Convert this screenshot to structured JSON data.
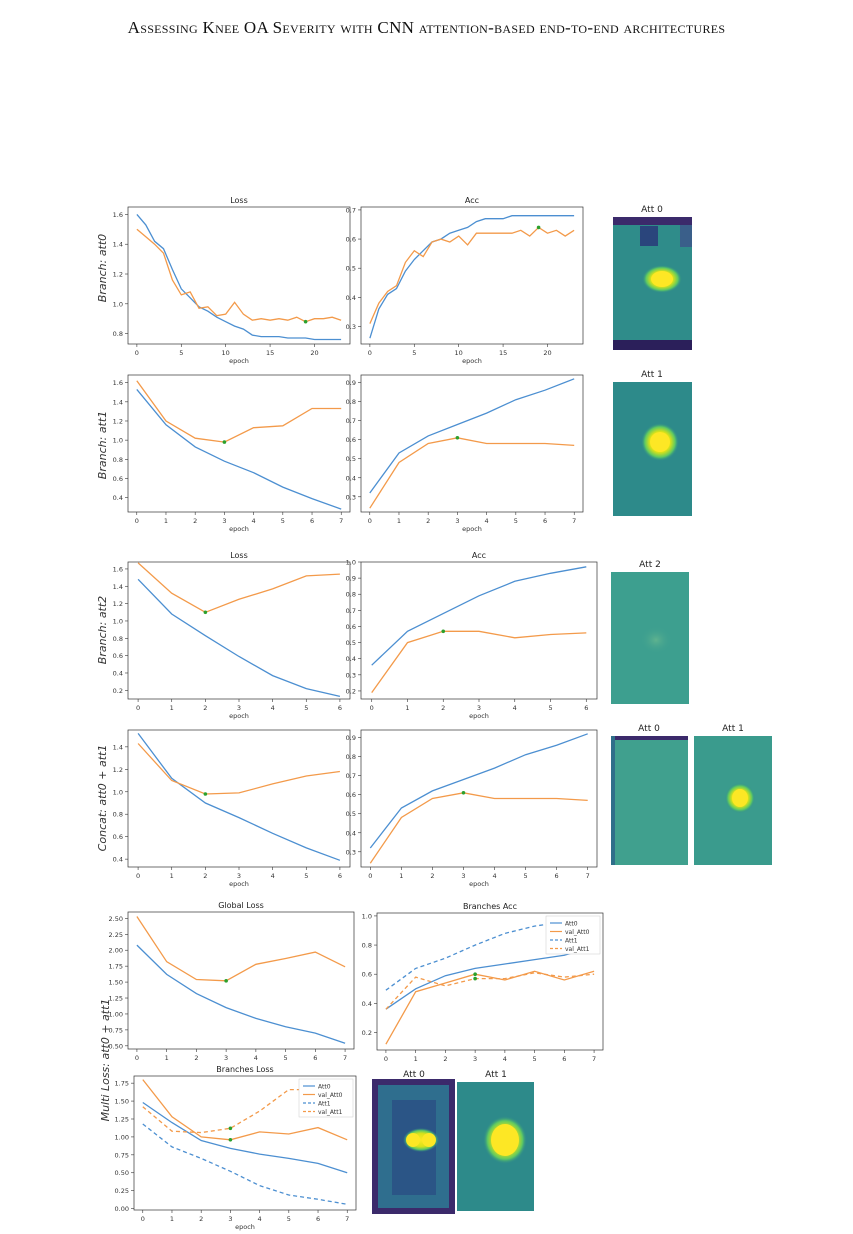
{
  "header": {
    "running_title": "Assessing Knee OA Severity with CNN attention-based end-to-end architectures"
  },
  "figure": {
    "rows": [
      {
        "label": "Branch: att0"
      },
      {
        "label": "Branch: att1"
      },
      {
        "label": "Branch: att2"
      },
      {
        "label": "Concat: att0 + att1"
      },
      {
        "label": "Multi Loss: att0 + att1"
      }
    ],
    "attention_titles": [
      "Att 0",
      "Att 1",
      "Att 2",
      "Att 0",
      "Att 1",
      "Att 0",
      "Att 1"
    ]
  },
  "colors": {
    "train": "#4c8fd1",
    "val": "#f39a4a",
    "best_marker": "#2ca02c",
    "heat_bg": "#2d8a8a",
    "heat_hot": "#fde725",
    "heat_dark": "#3b2a6b"
  },
  "chart_data": [
    {
      "id": "p1",
      "type": "line",
      "title": "Loss",
      "xlabel": "epoch",
      "ylabel": "",
      "xlim": [
        -1,
        24
      ],
      "ylim": [
        0.73,
        1.65
      ],
      "xticks": [
        0,
        5,
        10,
        15,
        20
      ],
      "yticks": [
        0.8,
        1.0,
        1.2,
        1.4,
        1.6
      ],
      "series": [
        {
          "role": "train",
          "x": [
            0,
            1,
            2,
            3,
            4,
            5,
            6,
            7,
            8,
            9,
            10,
            11,
            12,
            13,
            14,
            15,
            16,
            17,
            18,
            19,
            20,
            21,
            22,
            23
          ],
          "values": [
            1.6,
            1.53,
            1.42,
            1.37,
            1.23,
            1.1,
            1.04,
            0.98,
            0.95,
            0.91,
            0.88,
            0.85,
            0.83,
            0.79,
            0.78,
            0.78,
            0.78,
            0.77,
            0.77,
            0.77,
            0.76,
            0.76,
            0.76,
            0.76
          ]
        },
        {
          "role": "val",
          "x": [
            0,
            1,
            2,
            3,
            4,
            5,
            6,
            7,
            8,
            9,
            10,
            11,
            12,
            13,
            14,
            15,
            16,
            17,
            18,
            19,
            20,
            21,
            22,
            23
          ],
          "values": [
            1.5,
            1.45,
            1.4,
            1.34,
            1.16,
            1.06,
            1.08,
            0.97,
            0.98,
            0.92,
            0.93,
            1.01,
            0.93,
            0.89,
            0.9,
            0.89,
            0.9,
            0.89,
            0.91,
            0.88,
            0.9,
            0.9,
            0.91,
            0.89
          ]
        }
      ],
      "marker": {
        "x": 19,
        "y": 0.88
      }
    },
    {
      "id": "p2",
      "type": "line",
      "title": "Acc",
      "xlabel": "epoch",
      "ylabel": "",
      "xlim": [
        -1,
        24
      ],
      "ylim": [
        0.24,
        0.71
      ],
      "xticks": [
        0,
        5,
        10,
        15,
        20
      ],
      "yticks": [
        0.3,
        0.4,
        0.5,
        0.6,
        0.7
      ],
      "series": [
        {
          "role": "train",
          "x": [
            0,
            1,
            2,
            3,
            4,
            5,
            6,
            7,
            8,
            9,
            10,
            11,
            12,
            13,
            14,
            15,
            16,
            17,
            18,
            19,
            20,
            21,
            22,
            23
          ],
          "values": [
            0.26,
            0.36,
            0.41,
            0.43,
            0.49,
            0.53,
            0.56,
            0.59,
            0.6,
            0.62,
            0.63,
            0.64,
            0.66,
            0.67,
            0.67,
            0.67,
            0.68,
            0.68,
            0.68,
            0.68,
            0.68,
            0.68,
            0.68,
            0.68
          ]
        },
        {
          "role": "val",
          "x": [
            0,
            1,
            2,
            3,
            4,
            5,
            6,
            7,
            8,
            9,
            10,
            11,
            12,
            13,
            14,
            15,
            16,
            17,
            18,
            19,
            20,
            21,
            22,
            23
          ],
          "values": [
            0.31,
            0.38,
            0.42,
            0.44,
            0.52,
            0.56,
            0.54,
            0.59,
            0.6,
            0.59,
            0.61,
            0.58,
            0.62,
            0.62,
            0.62,
            0.62,
            0.62,
            0.63,
            0.61,
            0.64,
            0.62,
            0.63,
            0.61,
            0.63
          ]
        }
      ],
      "marker": {
        "x": 19,
        "y": 0.64
      }
    },
    {
      "id": "p3",
      "type": "line",
      "title": "",
      "xlabel": "epoch",
      "ylabel": "",
      "xlim": [
        -0.3,
        7.3
      ],
      "ylim": [
        0.25,
        1.68
      ],
      "xticks": [
        0,
        1,
        2,
        3,
        4,
        5,
        6,
        7
      ],
      "yticks": [
        0.4,
        0.6,
        0.8,
        1.0,
        1.2,
        1.4,
        1.6
      ],
      "series": [
        {
          "role": "train",
          "x": [
            0,
            1,
            2,
            3,
            4,
            5,
            6,
            7
          ],
          "values": [
            1.53,
            1.16,
            0.93,
            0.78,
            0.66,
            0.51,
            0.39,
            0.28
          ]
        },
        {
          "role": "val",
          "x": [
            0,
            1,
            2,
            3,
            4,
            5,
            6,
            7
          ],
          "values": [
            1.62,
            1.2,
            1.02,
            0.98,
            1.13,
            1.15,
            1.33,
            1.33
          ]
        }
      ],
      "marker": {
        "x": 3,
        "y": 0.98
      }
    },
    {
      "id": "p4",
      "type": "line",
      "title": "",
      "xlabel": "epoch",
      "ylabel": "",
      "xlim": [
        -0.3,
        7.3
      ],
      "ylim": [
        0.22,
        0.94
      ],
      "xticks": [
        0,
        1,
        2,
        3,
        4,
        5,
        6,
        7
      ],
      "yticks": [
        0.3,
        0.4,
        0.5,
        0.6,
        0.7,
        0.8,
        0.9
      ],
      "series": [
        {
          "role": "train",
          "x": [
            0,
            1,
            2,
            3,
            4,
            5,
            6,
            7
          ],
          "values": [
            0.32,
            0.53,
            0.62,
            0.68,
            0.74,
            0.81,
            0.86,
            0.92
          ]
        },
        {
          "role": "val",
          "x": [
            0,
            1,
            2,
            3,
            4,
            5,
            6,
            7
          ],
          "values": [
            0.24,
            0.48,
            0.58,
            0.61,
            0.58,
            0.58,
            0.58,
            0.57
          ]
        }
      ],
      "marker": {
        "x": 3,
        "y": 0.61
      }
    },
    {
      "id": "p5",
      "type": "line",
      "title": "Loss",
      "xlabel": "epoch",
      "ylabel": "",
      "xlim": [
        -0.3,
        6.3
      ],
      "ylim": [
        0.1,
        1.68
      ],
      "xticks": [
        0,
        1,
        2,
        3,
        4,
        5,
        6
      ],
      "yticks": [
        0.2,
        0.4,
        0.6,
        0.8,
        1.0,
        1.2,
        1.4,
        1.6
      ],
      "series": [
        {
          "role": "train",
          "x": [
            0,
            1,
            2,
            3,
            4,
            5,
            6
          ],
          "values": [
            1.48,
            1.08,
            0.83,
            0.59,
            0.37,
            0.22,
            0.13
          ]
        },
        {
          "role": "val",
          "x": [
            0,
            1,
            2,
            3,
            4,
            5,
            6
          ],
          "values": [
            1.67,
            1.32,
            1.1,
            1.25,
            1.37,
            1.52,
            1.54
          ]
        }
      ],
      "marker": {
        "x": 2,
        "y": 1.1
      }
    },
    {
      "id": "p6",
      "type": "line",
      "title": "Acc",
      "xlabel": "epoch",
      "ylabel": "",
      "xlim": [
        -0.3,
        6.3
      ],
      "ylim": [
        0.15,
        1.0
      ],
      "xticks": [
        0,
        1,
        2,
        3,
        4,
        5,
        6
      ],
      "yticks": [
        0.2,
        0.3,
        0.4,
        0.5,
        0.6,
        0.7,
        0.8,
        0.9,
        1.0
      ],
      "series": [
        {
          "role": "train",
          "x": [
            0,
            1,
            2,
            3,
            4,
            5,
            6
          ],
          "values": [
            0.36,
            0.57,
            0.68,
            0.79,
            0.88,
            0.93,
            0.97
          ]
        },
        {
          "role": "val",
          "x": [
            0,
            1,
            2,
            3,
            4,
            5,
            6
          ],
          "values": [
            0.19,
            0.5,
            0.57,
            0.57,
            0.53,
            0.55,
            0.56
          ]
        }
      ],
      "marker": {
        "x": 2,
        "y": 0.57
      }
    },
    {
      "id": "p7",
      "type": "line",
      "title": "",
      "xlabel": "epoch",
      "ylabel": "",
      "xlim": [
        -0.3,
        6.3
      ],
      "ylim": [
        0.33,
        1.55
      ],
      "xticks": [
        0,
        1,
        2,
        3,
        4,
        5,
        6
      ],
      "yticks": [
        0.4,
        0.6,
        0.8,
        1.0,
        1.2,
        1.4
      ],
      "series": [
        {
          "role": "train",
          "x": [
            0,
            1,
            2,
            3,
            4,
            5,
            6
          ],
          "values": [
            1.52,
            1.12,
            0.9,
            0.77,
            0.63,
            0.5,
            0.39
          ]
        },
        {
          "role": "val",
          "x": [
            0,
            1,
            2,
            3,
            4,
            5,
            6
          ],
          "values": [
            1.43,
            1.1,
            0.98,
            0.99,
            1.07,
            1.14,
            1.18
          ]
        }
      ],
      "marker": {
        "x": 2,
        "y": 0.98
      }
    },
    {
      "id": "p8",
      "type": "line",
      "title": "",
      "xlabel": "epoch",
      "ylabel": "",
      "xlim": [
        -0.3,
        7.3
      ],
      "ylim": [
        0.22,
        0.94
      ],
      "xticks": [
        0,
        1,
        2,
        3,
        4,
        5,
        6,
        7
      ],
      "yticks": [
        0.3,
        0.4,
        0.5,
        0.6,
        0.7,
        0.8,
        0.9
      ],
      "series": [
        {
          "role": "train",
          "x": [
            0,
            1,
            2,
            3,
            4,
            5,
            6,
            7
          ],
          "values": [
            0.32,
            0.53,
            0.62,
            0.68,
            0.74,
            0.81,
            0.86,
            0.92
          ]
        },
        {
          "role": "val",
          "x": [
            0,
            1,
            2,
            3,
            4,
            5,
            6,
            7
          ],
          "values": [
            0.24,
            0.48,
            0.58,
            0.61,
            0.58,
            0.58,
            0.58,
            0.57
          ]
        }
      ],
      "marker": {
        "x": 3,
        "y": 0.61
      }
    },
    {
      "id": "p9",
      "type": "line",
      "title": "Global Loss",
      "xlabel": "",
      "ylabel": "",
      "xlim": [
        -0.3,
        7.3
      ],
      "ylim": [
        0.45,
        2.6
      ],
      "xticks": [
        0,
        1,
        2,
        3,
        4,
        5,
        6,
        7
      ],
      "yticks": [
        0.5,
        0.75,
        1.0,
        1.25,
        1.5,
        1.75,
        2.0,
        2.25,
        2.5
      ],
      "ytick_labels": [
        "0.50",
        "0.75",
        "1.00",
        "1.25",
        "1.50",
        "1.75",
        "2.00",
        "2.25",
        "2.50"
      ],
      "series": [
        {
          "role": "train",
          "x": [
            0,
            1,
            2,
            3,
            4,
            5,
            6,
            7
          ],
          "values": [
            2.08,
            1.62,
            1.32,
            1.1,
            0.93,
            0.8,
            0.7,
            0.54
          ]
        },
        {
          "role": "val",
          "x": [
            0,
            1,
            2,
            3,
            4,
            5,
            6,
            7
          ],
          "values": [
            2.53,
            1.82,
            1.54,
            1.52,
            1.78,
            1.87,
            1.97,
            1.74
          ]
        }
      ],
      "marker": {
        "x": 3,
        "y": 1.52
      }
    },
    {
      "id": "p10",
      "type": "line",
      "title": "Branches Acc",
      "xlabel": "",
      "ylabel": "",
      "xlim": [
        -0.3,
        7.3
      ],
      "ylim": [
        0.08,
        1.02
      ],
      "xticks": [
        0,
        1,
        2,
        3,
        4,
        5,
        6,
        7
      ],
      "yticks": [
        0.2,
        0.4,
        0.6,
        0.8,
        1.0
      ],
      "legend": [
        "Att0",
        "val_Att0",
        "Att1",
        "val_Att1"
      ],
      "legend_position": "top-right",
      "series": [
        {
          "name": "Att0",
          "role": "train",
          "x": [
            0,
            1,
            2,
            3,
            4,
            5,
            6,
            7
          ],
          "values": [
            0.36,
            0.5,
            0.59,
            0.64,
            0.67,
            0.7,
            0.73,
            0.79
          ]
        },
        {
          "name": "val_Att0",
          "role": "val",
          "x": [
            0,
            1,
            2,
            3,
            4,
            5,
            6,
            7
          ],
          "values": [
            0.12,
            0.48,
            0.54,
            0.6,
            0.56,
            0.62,
            0.56,
            0.62
          ]
        },
        {
          "name": "Att1",
          "role": "train",
          "dashed": true,
          "x": [
            0,
            1,
            2,
            3,
            4,
            5,
            6,
            7
          ],
          "values": [
            0.49,
            0.64,
            0.71,
            0.8,
            0.88,
            0.93,
            0.96,
            0.99
          ]
        },
        {
          "name": "val_Att1",
          "role": "val",
          "dashed": true,
          "x": [
            0,
            1,
            2,
            3,
            4,
            5,
            6,
            7
          ],
          "values": [
            0.36,
            0.58,
            0.52,
            0.57,
            0.57,
            0.61,
            0.58,
            0.6
          ]
        }
      ],
      "markers": [
        {
          "x": 3,
          "y": 0.6
        },
        {
          "x": 3,
          "y": 0.57
        }
      ]
    },
    {
      "id": "p11",
      "type": "line",
      "title": "Branches Loss",
      "xlabel": "epoch",
      "ylabel": "",
      "xlim": [
        -0.3,
        7.3
      ],
      "ylim": [
        -0.02,
        1.85
      ],
      "xticks": [
        0,
        1,
        2,
        3,
        4,
        5,
        6,
        7
      ],
      "yticks": [
        0,
        0.25,
        0.5,
        0.75,
        1.0,
        1.25,
        1.5,
        1.75
      ],
      "ytick_labels": [
        "0.00",
        "0.25",
        "0.50",
        "0.75",
        "1.00",
        "1.25",
        "1.50",
        "1.75"
      ],
      "legend": [
        "Att0",
        "val_Att0",
        "Att1",
        "val_Att1"
      ],
      "legend_position": "top-right",
      "series": [
        {
          "name": "Att0",
          "role": "train",
          "x": [
            0,
            1,
            2,
            3,
            4,
            5,
            6,
            7
          ],
          "values": [
            1.48,
            1.2,
            0.95,
            0.84,
            0.76,
            0.7,
            0.63,
            0.5
          ]
        },
        {
          "name": "val_Att0",
          "role": "val",
          "x": [
            0,
            1,
            2,
            3,
            4,
            5,
            6,
            7
          ],
          "values": [
            1.8,
            1.28,
            1.0,
            0.96,
            1.07,
            1.04,
            1.13,
            0.96
          ]
        },
        {
          "name": "Att1",
          "role": "train",
          "dashed": true,
          "x": [
            0,
            1,
            2,
            3,
            4,
            5,
            6,
            7
          ],
          "values": [
            1.18,
            0.86,
            0.7,
            0.52,
            0.32,
            0.19,
            0.13,
            0.06
          ]
        },
        {
          "name": "val_Att1",
          "role": "val",
          "dashed": true,
          "x": [
            0,
            1,
            2,
            3,
            4,
            5,
            6,
            7
          ],
          "values": [
            1.42,
            1.08,
            1.06,
            1.12,
            1.36,
            1.66,
            1.66,
            1.66
          ]
        }
      ],
      "markers": [
        {
          "x": 3,
          "y": 0.96
        },
        {
          "x": 3,
          "y": 1.12
        }
      ]
    }
  ]
}
